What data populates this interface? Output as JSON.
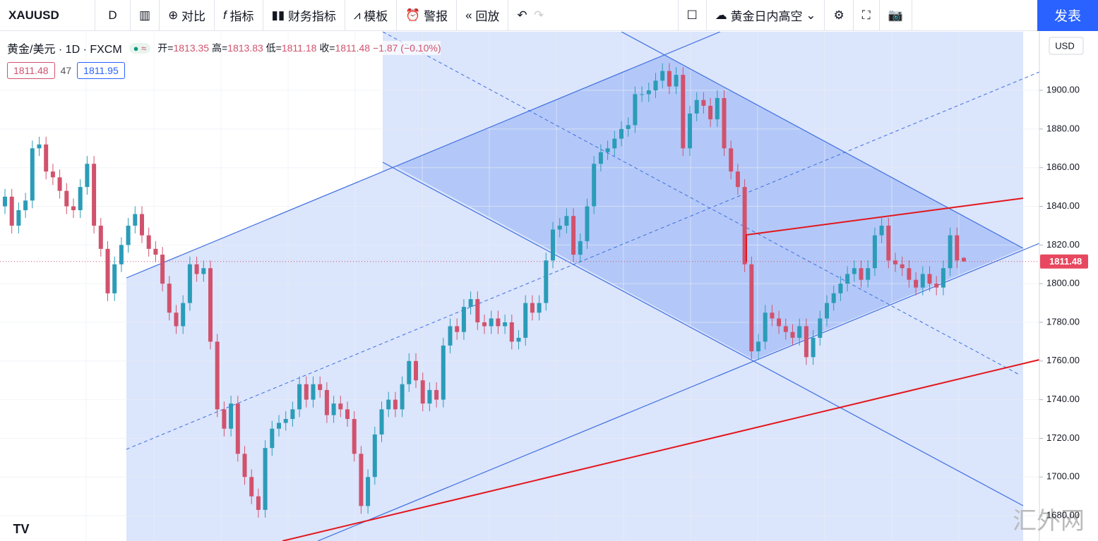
{
  "toolbar": {
    "symbol": "XAUUSD",
    "interval": "D",
    "items": [
      "对比",
      "指标",
      "财务指标",
      "模板",
      "警报",
      "回放"
    ],
    "layout_name": "黄金日内高空",
    "publish": "发表"
  },
  "legend": {
    "name": "黄金/美元 · 1D · FXCM",
    "open_label": "开=",
    "high_label": "高=",
    "low_label": "低=",
    "close_label": "收=",
    "change": "−1.87 (−0.10%)"
  },
  "quote": {
    "bid": 1811.48,
    "spread": 47,
    "ask": 1811.95
  },
  "currency": "USD",
  "watermark": "汇外网",
  "chart_data": {
    "type": "candlestick",
    "up_color": "#2b9cb8",
    "down_color": "#d1526d",
    "ylim": [
      1666.9,
      1930.3
    ],
    "yticks": [
      {
        "value": 1680,
        "label": "1680.00"
      },
      {
        "value": 1700,
        "label": "1700.00"
      },
      {
        "value": 1720,
        "label": "1720.00"
      },
      {
        "value": 1740,
        "label": "1740.00"
      },
      {
        "value": 1760,
        "label": "1760.00"
      },
      {
        "value": 1780,
        "label": "1780.00"
      },
      {
        "value": 1800,
        "label": "1800.00"
      },
      {
        "value": 1820,
        "label": "1820.00"
      },
      {
        "value": 1840,
        "label": "1840.00"
      },
      {
        "value": 1860,
        "label": "1860.00"
      },
      {
        "value": 1880,
        "label": "1880.00"
      },
      {
        "value": 1900,
        "label": "1900.00"
      }
    ],
    "grid": true,
    "last_price": 1811.48,
    "open": [
      1840,
      1845,
      1830,
      1838,
      1843,
      1870,
      1872,
      1858,
      1855,
      1848,
      1840,
      1838,
      1850,
      1862,
      1830,
      1818,
      1795,
      1810,
      1820,
      1830,
      1836,
      1825,
      1818,
      1815,
      1800,
      1785,
      1778,
      1790,
      1810,
      1805,
      1808,
      1770,
      1735,
      1725,
      1738,
      1712,
      1700,
      1690,
      1683,
      1715,
      1725,
      1728,
      1730,
      1735,
      1748,
      1740,
      1748,
      1745,
      1732,
      1738,
      1735,
      1730,
      1712,
      1685,
      1700,
      1722,
      1735,
      1740,
      1735,
      1748,
      1760,
      1750,
      1738,
      1745,
      1740,
      1768,
      1778,
      1775,
      1788,
      1792,
      1780,
      1778,
      1782,
      1778,
      1780,
      1770,
      1772,
      1790,
      1785,
      1790,
      1812,
      1828,
      1830,
      1835,
      1815,
      1822,
      1840,
      1862,
      1868,
      1870,
      1875,
      1880,
      1882,
      1898,
      1898,
      1900,
      1905,
      1910,
      1902,
      1908,
      1870,
      1888,
      1895,
      1892,
      1885,
      1896,
      1870,
      1858,
      1850,
      1810,
      1765,
      1770,
      1785,
      1782,
      1778,
      1775,
      1772,
      1778,
      1762,
      1772,
      1782,
      1790,
      1795,
      1800,
      1805,
      1808,
      1802,
      1808,
      1825,
      1830,
      1812,
      1810,
      1808,
      1802,
      1798,
      1805,
      1800,
      1798,
      1808,
      1825,
      1813.35
    ],
    "high": [
      1849,
      1849,
      1842,
      1847,
      1874,
      1876,
      1876,
      1862,
      1859,
      1852,
      1844,
      1854,
      1866,
      1866,
      1834,
      1822,
      1814,
      1824,
      1834,
      1840,
      1840,
      1829,
      1822,
      1819,
      1804,
      1789,
      1794,
      1814,
      1814,
      1812,
      1812,
      1774,
      1739,
      1742,
      1742,
      1716,
      1704,
      1694,
      1719,
      1729,
      1732,
      1734,
      1739,
      1752,
      1752,
      1752,
      1752,
      1749,
      1742,
      1742,
      1739,
      1734,
      1716,
      1704,
      1726,
      1739,
      1744,
      1744,
      1752,
      1764,
      1764,
      1754,
      1749,
      1749,
      1772,
      1782,
      1782,
      1792,
      1796,
      1796,
      1784,
      1786,
      1786,
      1784,
      1784,
      1776,
      1794,
      1794,
      1794,
      1816,
      1832,
      1834,
      1839,
      1839,
      1826,
      1844,
      1866,
      1872,
      1874,
      1879,
      1884,
      1886,
      1902,
      1902,
      1904,
      1909,
      1914,
      1914,
      1912,
      1912,
      1892,
      1899,
      1899,
      1896,
      1900,
      1900,
      1874,
      1862,
      1854,
      1814,
      1774,
      1789,
      1789,
      1786,
      1782,
      1779,
      1782,
      1782,
      1776,
      1786,
      1794,
      1799,
      1804,
      1809,
      1812,
      1812,
      1812,
      1829,
      1834,
      1834,
      1816,
      1814,
      1812,
      1806,
      1809,
      1809,
      1804,
      1812,
      1829,
      1829,
      1813.83
    ],
    "low": [
      1836,
      1826,
      1826,
      1834,
      1839,
      1866,
      1854,
      1851,
      1844,
      1836,
      1834,
      1834,
      1846,
      1826,
      1814,
      1791,
      1791,
      1806,
      1816,
      1826,
      1821,
      1814,
      1811,
      1796,
      1781,
      1774,
      1774,
      1786,
      1801,
      1801,
      1766,
      1731,
      1721,
      1721,
      1708,
      1696,
      1686,
      1679,
      1679,
      1711,
      1721,
      1724,
      1726,
      1731,
      1736,
      1736,
      1741,
      1728,
      1728,
      1731,
      1726,
      1708,
      1681,
      1681,
      1696,
      1718,
      1731,
      1731,
      1731,
      1744,
      1746,
      1734,
      1734,
      1736,
      1736,
      1764,
      1771,
      1771,
      1784,
      1776,
      1774,
      1774,
      1774,
      1774,
      1766,
      1766,
      1768,
      1781,
      1781,
      1786,
      1808,
      1824,
      1826,
      1811,
      1811,
      1818,
      1836,
      1858,
      1864,
      1866,
      1871,
      1876,
      1878,
      1894,
      1894,
      1896,
      1901,
      1898,
      1898,
      1866,
      1866,
      1884,
      1888,
      1881,
      1881,
      1866,
      1854,
      1846,
      1806,
      1761,
      1761,
      1766,
      1778,
      1774,
      1771,
      1768,
      1768,
      1758,
      1758,
      1768,
      1778,
      1786,
      1791,
      1796,
      1801,
      1798,
      1798,
      1804,
      1821,
      1808,
      1806,
      1804,
      1798,
      1794,
      1794,
      1796,
      1794,
      1794,
      1804,
      1808,
      1811.18
    ],
    "close": [
      1845,
      1830,
      1838,
      1843,
      1870,
      1872,
      1858,
      1855,
      1848,
      1840,
      1838,
      1850,
      1862,
      1830,
      1818,
      1795,
      1810,
      1820,
      1830,
      1836,
      1825,
      1818,
      1815,
      1800,
      1785,
      1778,
      1790,
      1810,
      1805,
      1808,
      1770,
      1735,
      1725,
      1738,
      1712,
      1700,
      1690,
      1683,
      1715,
      1725,
      1728,
      1730,
      1735,
      1748,
      1740,
      1748,
      1745,
      1732,
      1738,
      1735,
      1730,
      1712,
      1685,
      1700,
      1722,
      1735,
      1740,
      1735,
      1748,
      1760,
      1750,
      1738,
      1745,
      1740,
      1768,
      1778,
      1775,
      1788,
      1792,
      1780,
      1778,
      1782,
      1778,
      1780,
      1770,
      1772,
      1790,
      1785,
      1790,
      1812,
      1828,
      1830,
      1835,
      1815,
      1822,
      1840,
      1862,
      1868,
      1870,
      1875,
      1880,
      1882,
      1898,
      1898,
      1900,
      1905,
      1910,
      1902,
      1908,
      1870,
      1888,
      1895,
      1892,
      1885,
      1896,
      1870,
      1858,
      1850,
      1810,
      1765,
      1770,
      1785,
      1782,
      1778,
      1775,
      1772,
      1778,
      1762,
      1772,
      1782,
      1790,
      1795,
      1800,
      1805,
      1808,
      1802,
      1808,
      1825,
      1830,
      1812,
      1810,
      1808,
      1802,
      1798,
      1805,
      1800,
      1798,
      1808,
      1825,
      1812,
      1811.48
    ]
  }
}
